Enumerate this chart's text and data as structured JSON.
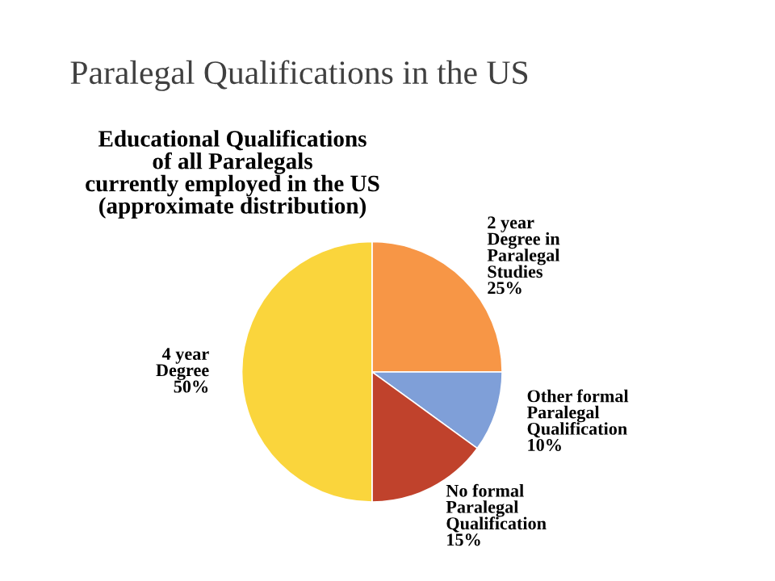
{
  "chart_data": {
    "type": "pie",
    "title": "Paralegal Qualifications in the US",
    "subtitle": "Educational Qualifications\nof all Paralegals\ncurrently employed in the US\n(approximate distribution)",
    "categories": [
      "2 year\nDegree in\nParalegal\nStudies",
      "Other formal\nParalegal\nQualification",
      "No formal\nParalegal\nQualification",
      "4 year\nDegree"
    ],
    "values": [
      25,
      10,
      15,
      50
    ],
    "colors": [
      "#f79646",
      "#7f9fd8",
      "#c0422c",
      "#fad53c"
    ],
    "value_labels": [
      "25%",
      "10%",
      "15%",
      "50%"
    ],
    "legend": false
  }
}
